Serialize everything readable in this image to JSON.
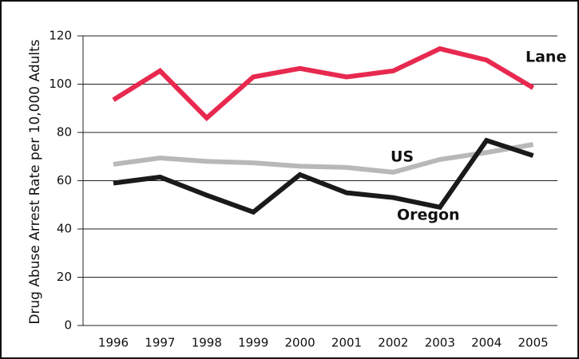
{
  "chart_data": {
    "type": "line",
    "y_label": "Drug Abuse Arrest Rate per 10,000 Adults",
    "categories": [
      "1996",
      "1997",
      "1998",
      "1999",
      "2000",
      "2001",
      "2002",
      "2003",
      "2004",
      "2005"
    ],
    "series": [
      {
        "name": "Lane",
        "color": "#e8294f",
        "values": [
          93.5,
          105.5,
          86,
          103,
          106.5,
          103,
          105.5,
          114.7,
          110,
          98.5
        ]
      },
      {
        "name": "US",
        "color": "#b8b8b8",
        "values": [
          66.8,
          69.4,
          68,
          67.4,
          66,
          65.5,
          63.5,
          68.8,
          71.7,
          75
        ]
      },
      {
        "name": "Oregon",
        "color": "#1a1a1a",
        "values": [
          59,
          61.5,
          54,
          47,
          62.5,
          55,
          53,
          49,
          76.7,
          70.4
        ]
      }
    ],
    "ylim": [
      0,
      120
    ],
    "yticks": [
      0,
      20,
      40,
      60,
      80,
      100,
      120
    ],
    "grid": true
  }
}
